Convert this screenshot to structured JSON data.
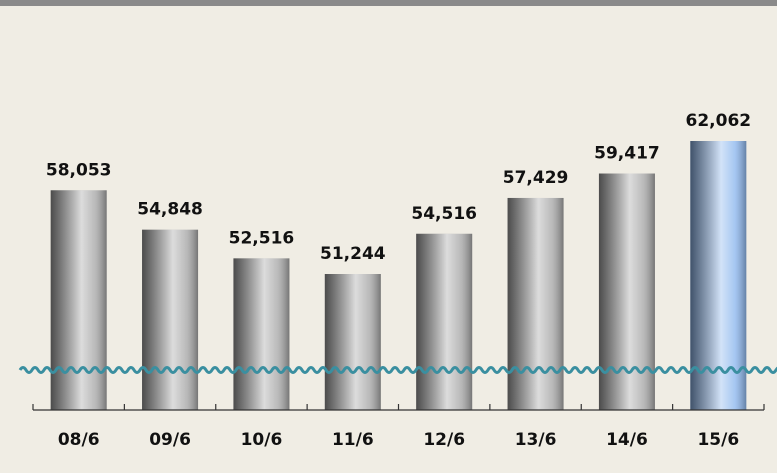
{
  "chart_data": {
    "type": "bar",
    "categories": [
      "08/6",
      "09/6",
      "10/6",
      "11/6",
      "12/6",
      "13/6",
      "14/6",
      "15/6"
    ],
    "values": [
      58053,
      54848,
      52516,
      51244,
      54516,
      57429,
      59417,
      62062
    ],
    "value_labels": [
      "58,053",
      "54,848",
      "52,516",
      "51,244",
      "54,516",
      "57,429",
      "59,417",
      "62,062"
    ],
    "colors": [
      "#a8a8a8",
      "#a8a8a8",
      "#a8a8a8",
      "#a8a8a8",
      "#a8a8a8",
      "#a8a8a8",
      "#a8a8a8",
      "#8fb8ee"
    ]
  }
}
